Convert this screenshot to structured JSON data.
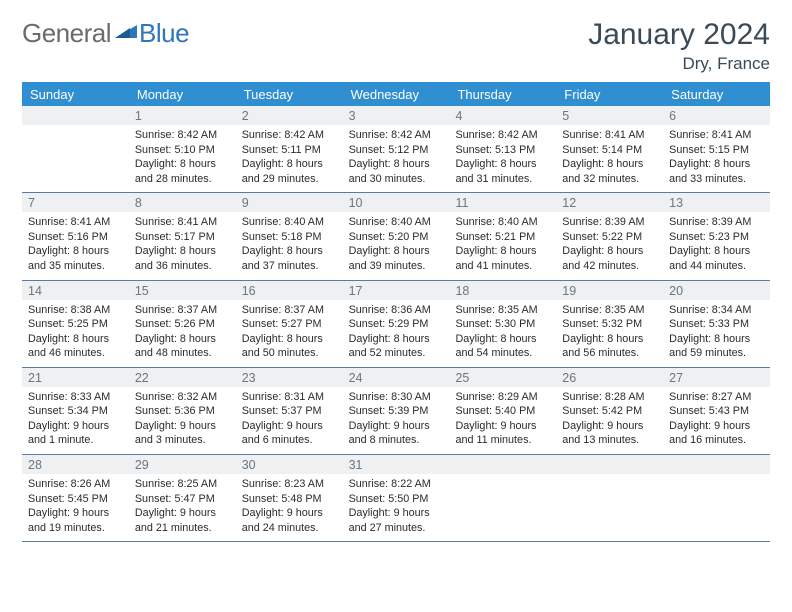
{
  "brand": {
    "general": "General",
    "blue": "Blue"
  },
  "header": {
    "title": "January 2024",
    "location": "Dry, France"
  },
  "dow": [
    "Sunday",
    "Monday",
    "Tuesday",
    "Wednesday",
    "Thursday",
    "Friday",
    "Saturday"
  ],
  "colors": {
    "headerBar": "#2f8fd0",
    "ruleLine": "#5a7ca0",
    "dayNumBg": "#eef0f1",
    "title": "#3a4a56",
    "logoGray": "#6b6b6b",
    "logoBlue": "#2f76bb"
  },
  "weeks": [
    [
      null,
      {
        "n": "1",
        "sr": "8:42 AM",
        "ss": "5:10 PM",
        "dl": "8 hours and 28 minutes."
      },
      {
        "n": "2",
        "sr": "8:42 AM",
        "ss": "5:11 PM",
        "dl": "8 hours and 29 minutes."
      },
      {
        "n": "3",
        "sr": "8:42 AM",
        "ss": "5:12 PM",
        "dl": "8 hours and 30 minutes."
      },
      {
        "n": "4",
        "sr": "8:42 AM",
        "ss": "5:13 PM",
        "dl": "8 hours and 31 minutes."
      },
      {
        "n": "5",
        "sr": "8:41 AM",
        "ss": "5:14 PM",
        "dl": "8 hours and 32 minutes."
      },
      {
        "n": "6",
        "sr": "8:41 AM",
        "ss": "5:15 PM",
        "dl": "8 hours and 33 minutes."
      }
    ],
    [
      {
        "n": "7",
        "sr": "8:41 AM",
        "ss": "5:16 PM",
        "dl": "8 hours and 35 minutes."
      },
      {
        "n": "8",
        "sr": "8:41 AM",
        "ss": "5:17 PM",
        "dl": "8 hours and 36 minutes."
      },
      {
        "n": "9",
        "sr": "8:40 AM",
        "ss": "5:18 PM",
        "dl": "8 hours and 37 minutes."
      },
      {
        "n": "10",
        "sr": "8:40 AM",
        "ss": "5:20 PM",
        "dl": "8 hours and 39 minutes."
      },
      {
        "n": "11",
        "sr": "8:40 AM",
        "ss": "5:21 PM",
        "dl": "8 hours and 41 minutes."
      },
      {
        "n": "12",
        "sr": "8:39 AM",
        "ss": "5:22 PM",
        "dl": "8 hours and 42 minutes."
      },
      {
        "n": "13",
        "sr": "8:39 AM",
        "ss": "5:23 PM",
        "dl": "8 hours and 44 minutes."
      }
    ],
    [
      {
        "n": "14",
        "sr": "8:38 AM",
        "ss": "5:25 PM",
        "dl": "8 hours and 46 minutes."
      },
      {
        "n": "15",
        "sr": "8:37 AM",
        "ss": "5:26 PM",
        "dl": "8 hours and 48 minutes."
      },
      {
        "n": "16",
        "sr": "8:37 AM",
        "ss": "5:27 PM",
        "dl": "8 hours and 50 minutes."
      },
      {
        "n": "17",
        "sr": "8:36 AM",
        "ss": "5:29 PM",
        "dl": "8 hours and 52 minutes."
      },
      {
        "n": "18",
        "sr": "8:35 AM",
        "ss": "5:30 PM",
        "dl": "8 hours and 54 minutes."
      },
      {
        "n": "19",
        "sr": "8:35 AM",
        "ss": "5:32 PM",
        "dl": "8 hours and 56 minutes."
      },
      {
        "n": "20",
        "sr": "8:34 AM",
        "ss": "5:33 PM",
        "dl": "8 hours and 59 minutes."
      }
    ],
    [
      {
        "n": "21",
        "sr": "8:33 AM",
        "ss": "5:34 PM",
        "dl": "9 hours and 1 minute."
      },
      {
        "n": "22",
        "sr": "8:32 AM",
        "ss": "5:36 PM",
        "dl": "9 hours and 3 minutes."
      },
      {
        "n": "23",
        "sr": "8:31 AM",
        "ss": "5:37 PM",
        "dl": "9 hours and 6 minutes."
      },
      {
        "n": "24",
        "sr": "8:30 AM",
        "ss": "5:39 PM",
        "dl": "9 hours and 8 minutes."
      },
      {
        "n": "25",
        "sr": "8:29 AM",
        "ss": "5:40 PM",
        "dl": "9 hours and 11 minutes."
      },
      {
        "n": "26",
        "sr": "8:28 AM",
        "ss": "5:42 PM",
        "dl": "9 hours and 13 minutes."
      },
      {
        "n": "27",
        "sr": "8:27 AM",
        "ss": "5:43 PM",
        "dl": "9 hours and 16 minutes."
      }
    ],
    [
      {
        "n": "28",
        "sr": "8:26 AM",
        "ss": "5:45 PM",
        "dl": "9 hours and 19 minutes."
      },
      {
        "n": "29",
        "sr": "8:25 AM",
        "ss": "5:47 PM",
        "dl": "9 hours and 21 minutes."
      },
      {
        "n": "30",
        "sr": "8:23 AM",
        "ss": "5:48 PM",
        "dl": "9 hours and 24 minutes."
      },
      {
        "n": "31",
        "sr": "8:22 AM",
        "ss": "5:50 PM",
        "dl": "9 hours and 27 minutes."
      },
      null,
      null,
      null
    ]
  ],
  "labels": {
    "sunrise": "Sunrise:",
    "sunset": "Sunset:",
    "daylight": "Daylight:"
  }
}
